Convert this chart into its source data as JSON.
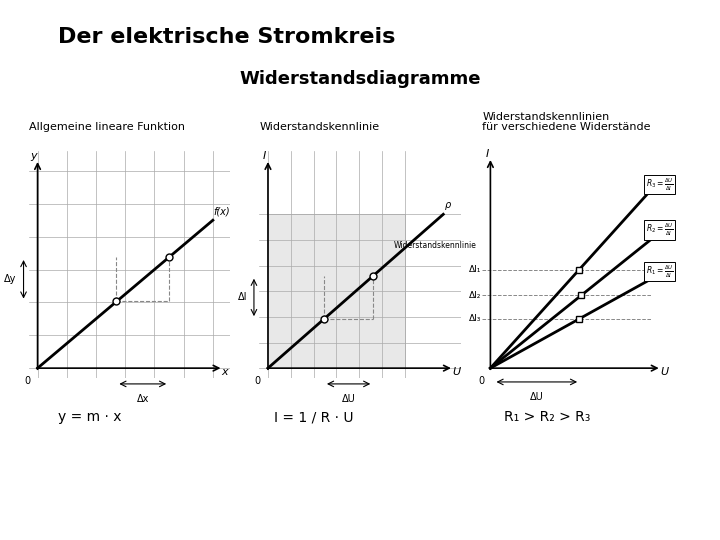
{
  "title": "Der elektrische Stromkreis",
  "subtitle": "Widerstandsdiagramme",
  "bg_color": "#ffffff",
  "title_fontsize": 16,
  "subtitle_fontsize": 13,
  "panel1": {
    "label": "Allgemeine lineare Funktion",
    "formula": "y = m · x",
    "xlabel": "x",
    "ylabel": "y",
    "func_label": "f(x)",
    "delta_x": "Δx",
    "delta_y": "Δy",
    "grid_color": "#aaaaaa",
    "line_color": "#000000"
  },
  "panel2": {
    "label": "Widerstandskennlinie",
    "formula": "I = 1 / R · U",
    "xlabel": "U",
    "ylabel": "I",
    "func_label": "ρ",
    "annot": "Widerstandskennlinie",
    "delta_x": "ΔU",
    "delta_y": "ΔI",
    "grid_color": "#aaaaaa",
    "line_color": "#000000"
  },
  "panel3": {
    "label_line1": "Widerstandskennlinien",
    "label_line2": "für verschiedene Widerstände",
    "formula": "R₁ > R₂ > R₃",
    "xlabel": "U",
    "ylabel": "I",
    "line_color": "#000000",
    "box_color": "#ffffff",
    "box_border": "#000000"
  }
}
